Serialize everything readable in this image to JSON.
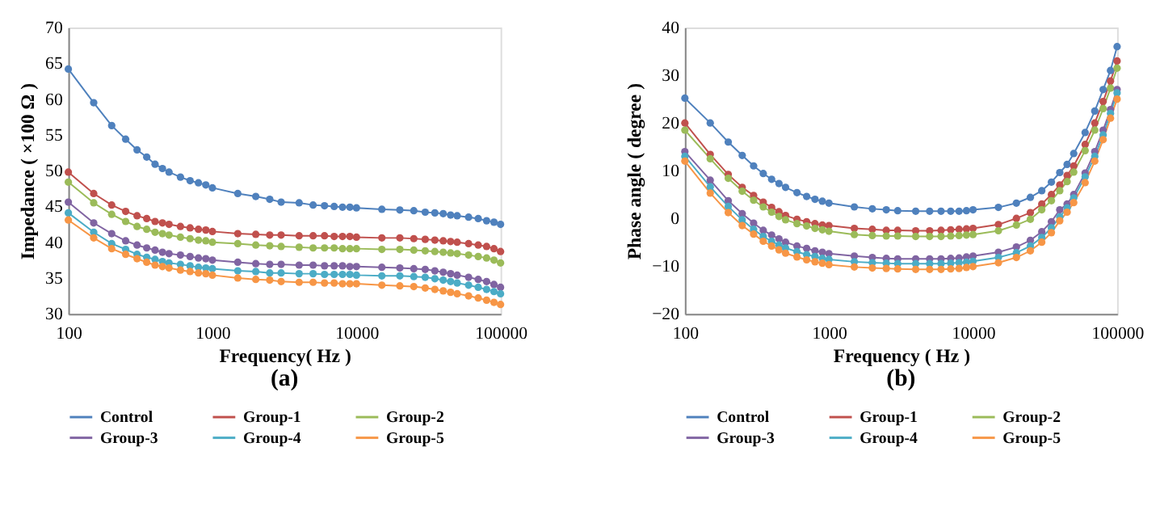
{
  "chart_data": [
    {
      "type": "line",
      "xlabel": "Frequency( Hz )",
      "ylabel": "Impedance ( ×100 Ω )",
      "annotations": [
        "(a)"
      ],
      "log": "x",
      "grid": false,
      "legend": "bottom",
      "marker": "circle",
      "line_style": "solid",
      "x": [
        100,
        150,
        200,
        250,
        300,
        350,
        400,
        450,
        500,
        600,
        700,
        800,
        900,
        1000,
        1500,
        2000,
        2500,
        3000,
        4000,
        5000,
        6000,
        7000,
        8000,
        9000,
        10000,
        15000,
        20000,
        25000,
        30000,
        35000,
        40000,
        45000,
        50000,
        60000,
        70000,
        80000,
        90000,
        100000
      ],
      "xlim": [
        100,
        100000
      ],
      "xticks": [
        100,
        1000,
        10000,
        100000
      ],
      "ylim": [
        30,
        70
      ],
      "yticks": [
        30,
        35,
        40,
        45,
        50,
        55,
        60,
        65,
        70
      ],
      "series": [
        {
          "name": "Control",
          "color": "#4f81bd",
          "values": [
            64.2,
            59.5,
            56.3,
            54.4,
            52.9,
            51.9,
            50.9,
            50.3,
            49.8,
            49.1,
            48.6,
            48.3,
            48.0,
            47.6,
            46.8,
            46.4,
            46.0,
            45.6,
            45.5,
            45.2,
            45.1,
            45.0,
            44.9,
            44.9,
            44.8,
            44.6,
            44.5,
            44.4,
            44.2,
            44.1,
            44.0,
            43.8,
            43.7,
            43.5,
            43.3,
            43.0,
            42.8,
            42.5
          ]
        },
        {
          "name": "Group-1",
          "color": "#c0504d",
          "values": [
            49.8,
            46.8,
            45.2,
            44.3,
            43.7,
            43.3,
            42.9,
            42.7,
            42.5,
            42.2,
            42.0,
            41.8,
            41.7,
            41.5,
            41.2,
            41.1,
            41.0,
            41.0,
            40.9,
            40.9,
            40.9,
            40.8,
            40.8,
            40.8,
            40.7,
            40.6,
            40.6,
            40.5,
            40.4,
            40.3,
            40.2,
            40.1,
            40.0,
            39.8,
            39.6,
            39.4,
            39.1,
            38.7
          ]
        },
        {
          "name": "Group-2",
          "color": "#9bbb59",
          "values": [
            48.4,
            45.5,
            43.9,
            42.9,
            42.2,
            41.8,
            41.4,
            41.2,
            41.0,
            40.7,
            40.5,
            40.3,
            40.2,
            40.0,
            39.8,
            39.6,
            39.5,
            39.4,
            39.3,
            39.2,
            39.2,
            39.2,
            39.1,
            39.1,
            39.1,
            39.0,
            39.0,
            38.9,
            38.8,
            38.7,
            38.6,
            38.5,
            38.4,
            38.2,
            38.0,
            37.8,
            37.5,
            37.1
          ]
        },
        {
          "name": "Group-3",
          "color": "#8064a2",
          "values": [
            45.6,
            42.7,
            41.2,
            40.2,
            39.6,
            39.2,
            38.9,
            38.6,
            38.4,
            38.2,
            38.0,
            37.8,
            37.7,
            37.5,
            37.2,
            37.0,
            36.9,
            36.9,
            36.8,
            36.8,
            36.7,
            36.7,
            36.7,
            36.6,
            36.6,
            36.5,
            36.4,
            36.3,
            36.2,
            36.0,
            35.8,
            35.6,
            35.4,
            35.1,
            34.8,
            34.5,
            34.1,
            33.7
          ]
        },
        {
          "name": "Group-4",
          "color": "#4bacc6",
          "values": [
            44.1,
            41.4,
            39.8,
            39.0,
            38.3,
            37.9,
            37.6,
            37.3,
            37.1,
            36.9,
            36.7,
            36.5,
            36.4,
            36.3,
            36.0,
            35.9,
            35.7,
            35.7,
            35.6,
            35.6,
            35.5,
            35.5,
            35.5,
            35.5,
            35.4,
            35.3,
            35.3,
            35.2,
            35.1,
            34.9,
            34.7,
            34.5,
            34.3,
            34.0,
            33.7,
            33.4,
            33.1,
            32.8
          ]
        },
        {
          "name": "Group-5",
          "color": "#f79646",
          "values": [
            43.1,
            40.6,
            39.1,
            38.3,
            37.7,
            37.2,
            36.8,
            36.6,
            36.4,
            36.1,
            35.9,
            35.7,
            35.6,
            35.4,
            35.0,
            34.8,
            34.7,
            34.5,
            34.4,
            34.4,
            34.3,
            34.3,
            34.2,
            34.2,
            34.2,
            34.0,
            33.9,
            33.8,
            33.6,
            33.4,
            33.2,
            33.0,
            32.8,
            32.5,
            32.2,
            31.9,
            31.6,
            31.3
          ]
        }
      ]
    },
    {
      "type": "line",
      "xlabel": "Frequency ( Hz )",
      "ylabel": "Phase angle ( degree )",
      "annotations": [
        "(b)"
      ],
      "log": "x",
      "grid": false,
      "legend": "bottom",
      "marker": "circle",
      "line_style": "solid",
      "x": [
        100,
        150,
        200,
        250,
        300,
        350,
        400,
        450,
        500,
        600,
        700,
        800,
        900,
        1000,
        1500,
        2000,
        2500,
        3000,
        4000,
        5000,
        6000,
        7000,
        8000,
        9000,
        10000,
        15000,
        20000,
        25000,
        30000,
        35000,
        40000,
        45000,
        50000,
        60000,
        70000,
        80000,
        90000,
        100000
      ],
      "xlim": [
        100,
        100000
      ],
      "xticks": [
        100,
        1000,
        10000,
        100000
      ],
      "ylim": [
        -20,
        40
      ],
      "yticks": [
        -20,
        -10,
        0,
        10,
        20,
        30,
        40
      ],
      "series": [
        {
          "name": "Control",
          "color": "#4f81bd",
          "values": [
            25.2,
            20,
            16,
            13.2,
            11,
            9.4,
            8.2,
            7.3,
            6.5,
            5.4,
            4.6,
            4.0,
            3.6,
            3.2,
            2.4,
            2.0,
            1.8,
            1.6,
            1.5,
            1.5,
            1.5,
            1.5,
            1.5,
            1.6,
            1.8,
            2.3,
            3.2,
            4.4,
            5.8,
            7.6,
            9.6,
            11.3,
            13.6,
            18,
            22.5,
            27,
            31,
            36
          ]
        },
        {
          "name": "Group-1",
          "color": "#c0504d",
          "values": [
            20,
            13.4,
            9.2,
            6.5,
            4.8,
            3.4,
            2.3,
            1.4,
            0.6,
            -0.2,
            -0.7,
            -1.1,
            -1.4,
            -1.5,
            -2.1,
            -2.3,
            -2.5,
            -2.5,
            -2.6,
            -2.6,
            -2.5,
            -2.4,
            -2.3,
            -2.2,
            -2.1,
            -1.3,
            0,
            1.2,
            3,
            5,
            7,
            9,
            11,
            15.5,
            20,
            24.5,
            28.8,
            33
          ]
        },
        {
          "name": "Group-2",
          "color": "#9bbb59",
          "values": [
            18.5,
            12.5,
            8.4,
            5.7,
            3.8,
            2.4,
            1.3,
            0.4,
            -0.3,
            -1.1,
            -1.6,
            -2.1,
            -2.4,
            -2.7,
            -3.4,
            -3.6,
            -3.7,
            -3.7,
            -3.8,
            -3.8,
            -3.8,
            -3.7,
            -3.6,
            -3.5,
            -3.4,
            -2.6,
            -1.4,
            -0.2,
            1.8,
            3.7,
            5.8,
            7.7,
            9.7,
            14.2,
            18.5,
            23,
            27.3,
            31.5
          ]
        },
        {
          "name": "Group-3",
          "color": "#8064a2",
          "values": [
            14,
            8,
            3.7,
            1,
            -1,
            -2.5,
            -3.5,
            -4.3,
            -5,
            -5.8,
            -6.3,
            -6.8,
            -7.1,
            -7.4,
            -7.9,
            -8.2,
            -8.4,
            -8.5,
            -8.5,
            -8.5,
            -8.5,
            -8.4,
            -8.3,
            -8.1,
            -7.9,
            -7.1,
            -6,
            -4.6,
            -2.8,
            -0.7,
            1.8,
            3,
            5,
            9.5,
            14,
            18.5,
            22.8,
            27
          ]
        },
        {
          "name": "Group-4",
          "color": "#4bacc6",
          "values": [
            13,
            6.6,
            2.5,
            -0.3,
            -2.3,
            -3.8,
            -4.8,
            -5.6,
            -6.2,
            -7,
            -7.6,
            -8,
            -8.4,
            -8.6,
            -9.1,
            -9.3,
            -9.4,
            -9.5,
            -9.5,
            -9.5,
            -9.5,
            -9.4,
            -9.3,
            -9.2,
            -9,
            -8.2,
            -7.2,
            -5.8,
            -4,
            -2,
            0.3,
            2.2,
            4.3,
            8.7,
            13,
            17.5,
            22,
            26.3
          ]
        },
        {
          "name": "Group-5",
          "color": "#f79646",
          "values": [
            12,
            5.3,
            1.2,
            -1.5,
            -3.3,
            -4.8,
            -5.8,
            -6.6,
            -7.3,
            -8.1,
            -8.7,
            -9.1,
            -9.4,
            -9.7,
            -10.2,
            -10.4,
            -10.5,
            -10.6,
            -10.7,
            -10.7,
            -10.7,
            -10.6,
            -10.5,
            -10.3,
            -10.1,
            -9.3,
            -8.2,
            -6.8,
            -5,
            -3,
            -0.5,
            1.3,
            3.3,
            7.5,
            12,
            16.5,
            21,
            25
          ]
        }
      ]
    }
  ]
}
